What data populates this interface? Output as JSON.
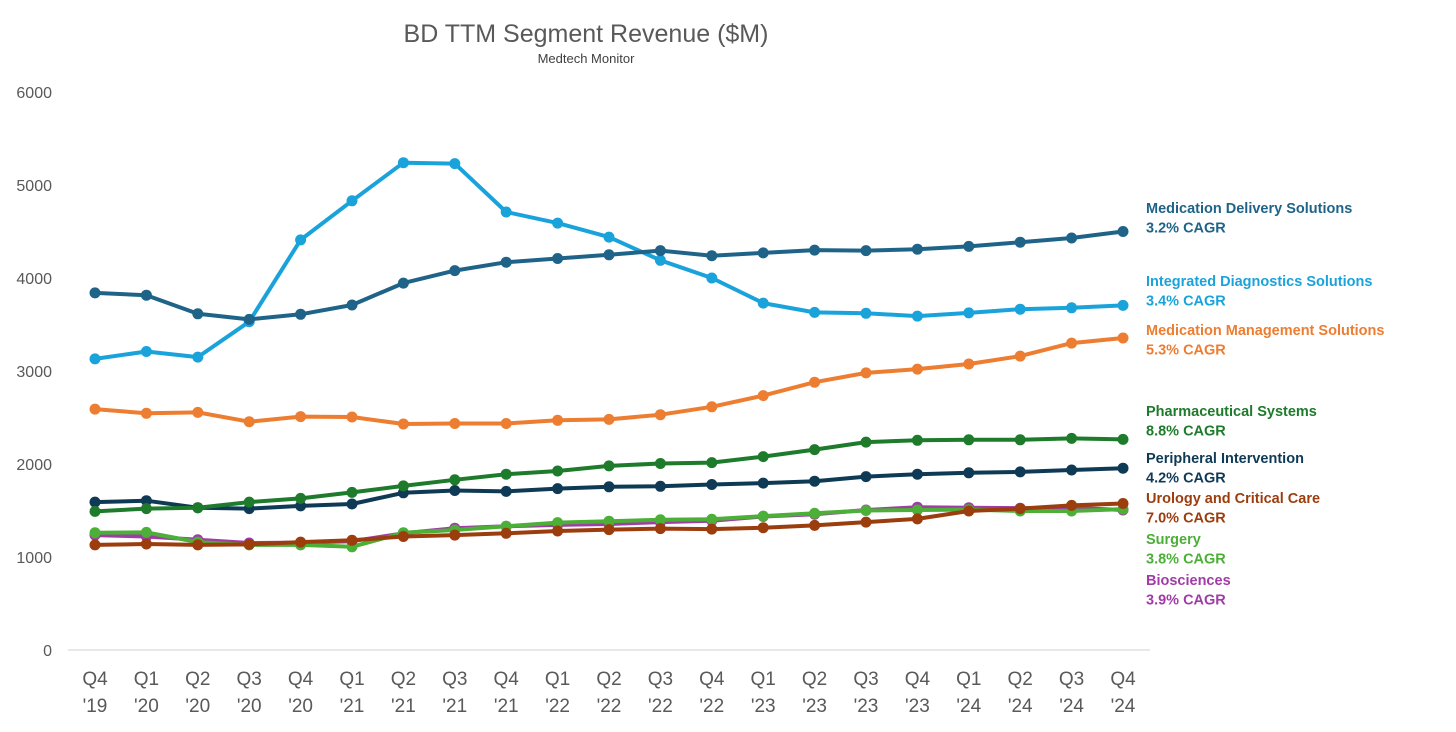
{
  "chart_data": {
    "type": "line",
    "title": "BD TTM Segment Revenue ($M)",
    "subtitle": "Medtech Monitor",
    "xlabel": "",
    "ylabel": "",
    "ylim": [
      0,
      6000
    ],
    "yticks": [
      0,
      1000,
      2000,
      3000,
      4000,
      5000,
      6000
    ],
    "grid": false,
    "legend_placement": "right",
    "categories": [
      [
        "Q4",
        "'19"
      ],
      [
        "Q1",
        "'20"
      ],
      [
        "Q2",
        "'20"
      ],
      [
        "Q3",
        "'20"
      ],
      [
        "Q4",
        "'20"
      ],
      [
        "Q1",
        "'21"
      ],
      [
        "Q2",
        "'21"
      ],
      [
        "Q3",
        "'21"
      ],
      [
        "Q4",
        "'21"
      ],
      [
        "Q1",
        "'22"
      ],
      [
        "Q2",
        "'22"
      ],
      [
        "Q3",
        "'22"
      ],
      [
        "Q4",
        "'22"
      ],
      [
        "Q1",
        "'23"
      ],
      [
        "Q2",
        "'23"
      ],
      [
        "Q3",
        "'23"
      ],
      [
        "Q4",
        "'23"
      ],
      [
        "Q1",
        "'24"
      ],
      [
        "Q2",
        "'24"
      ],
      [
        "Q3",
        "'24"
      ],
      [
        "Q4",
        "'24"
      ]
    ],
    "series": [
      {
        "name": "Medication Delivery Solutions",
        "cagr": "3.2% CAGR",
        "color": "#1f6488",
        "values": [
          3840,
          3815,
          3615,
          3555,
          3610,
          3710,
          3945,
          4080,
          4170,
          4210,
          4250,
          4295,
          4240,
          4270,
          4300,
          4295,
          4310,
          4340,
          4385,
          4430,
          4500
        ]
      },
      {
        "name": "Integrated Diagnostics Solutions",
        "cagr": "3.4% CAGR",
        "color": "#1aa3db",
        "values": [
          3130,
          3210,
          3150,
          3530,
          4410,
          4830,
          5240,
          5230,
          4710,
          4590,
          4440,
          4190,
          4000,
          3730,
          3630,
          3620,
          3590,
          3625,
          3665,
          3680,
          3705
        ]
      },
      {
        "name": "Medication Management Solutions",
        "cagr": "5.3% CAGR",
        "color": "#ed7d31",
        "values": [
          2590,
          2545,
          2555,
          2455,
          2510,
          2505,
          2430,
          2435,
          2435,
          2470,
          2480,
          2530,
          2615,
          2735,
          2880,
          2980,
          3020,
          3075,
          3160,
          3300,
          3355
        ]
      },
      {
        "name": "Pharmaceutical Systems",
        "cagr": "8.8% CAGR",
        "color": "#1e7b2b",
        "values": [
          1490,
          1520,
          1530,
          1590,
          1630,
          1695,
          1765,
          1830,
          1890,
          1925,
          1980,
          2005,
          2015,
          2080,
          2155,
          2235,
          2255,
          2260,
          2260,
          2275,
          2265
        ]
      },
      {
        "name": "Peripheral Intervention",
        "cagr": "4.2% CAGR",
        "color": "#0f3a55",
        "values": [
          1590,
          1605,
          1530,
          1520,
          1550,
          1570,
          1690,
          1715,
          1705,
          1735,
          1755,
          1760,
          1780,
          1795,
          1815,
          1865,
          1890,
          1905,
          1915,
          1935,
          1955
        ]
      },
      {
        "name": "Urology and Critical Care",
        "cagr": "7.0% CAGR",
        "color": "#9c3d0e",
        "values": [
          1130,
          1140,
          1130,
          1135,
          1160,
          1180,
          1220,
          1235,
          1255,
          1280,
          1295,
          1305,
          1300,
          1315,
          1340,
          1375,
          1410,
          1495,
          1520,
          1555,
          1575
        ]
      },
      {
        "name": "Surgery",
        "cagr": "3.8% CAGR",
        "color": "#4caf37",
        "values": [
          1260,
          1265,
          1160,
          1130,
          1130,
          1110,
          1260,
          1290,
          1330,
          1370,
          1385,
          1400,
          1405,
          1440,
          1470,
          1500,
          1505,
          1510,
          1495,
          1495,
          1515
        ]
      },
      {
        "name": "Biosciences",
        "cagr": "3.9% CAGR",
        "color": "#a03ca6",
        "values": [
          1235,
          1220,
          1185,
          1150,
          1155,
          1170,
          1255,
          1310,
          1330,
          1345,
          1355,
          1375,
          1390,
          1435,
          1460,
          1505,
          1535,
          1530,
          1525,
          1530,
          1505
        ]
      }
    ]
  }
}
